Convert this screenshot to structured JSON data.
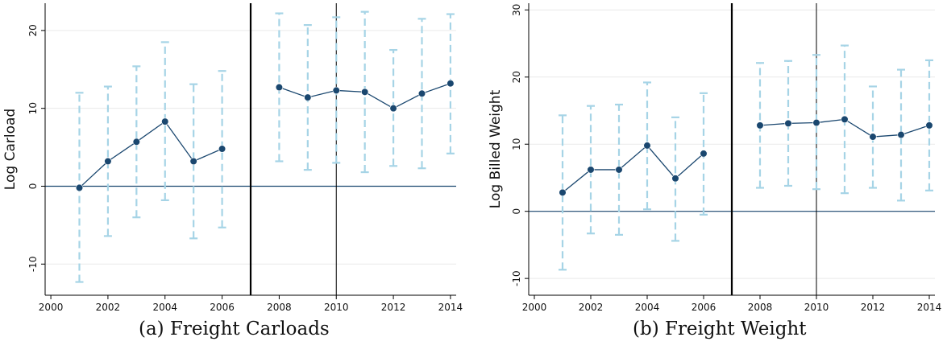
{
  "chart_data": [
    {
      "type": "line",
      "caption": "(a) Freight Carloads",
      "ylabel": "Log Carload",
      "xlabel": "",
      "xlim": [
        1999.8,
        2014.2
      ],
      "ylim": [
        -14,
        23.5
      ],
      "xticks": [
        2000,
        2002,
        2004,
        2006,
        2008,
        2010,
        2012,
        2014
      ],
      "yticks": [
        -10,
        0,
        10,
        20
      ],
      "hline": 0,
      "vlines": [
        {
          "x": 2007,
          "style": "thick"
        },
        {
          "x": 2010,
          "style": "thin"
        }
      ],
      "grid": true,
      "series": [
        {
          "segment": "pre",
          "points": [
            {
              "x": 2001,
              "y": -0.2,
              "lo": -12.3,
              "hi": 12.0
            },
            {
              "x": 2002,
              "y": 3.2,
              "lo": -6.4,
              "hi": 12.8
            },
            {
              "x": 2003,
              "y": 5.7,
              "lo": -4.0,
              "hi": 15.4
            },
            {
              "x": 2004,
              "y": 8.3,
              "lo": -1.8,
              "hi": 18.5
            },
            {
              "x": 2005,
              "y": 3.2,
              "lo": -6.7,
              "hi": 13.1
            },
            {
              "x": 2006,
              "y": 4.8,
              "lo": -5.3,
              "hi": 14.8
            }
          ]
        },
        {
          "segment": "post",
          "points": [
            {
              "x": 2008,
              "y": 12.7,
              "lo": 3.2,
              "hi": 22.2
            },
            {
              "x": 2009,
              "y": 11.4,
              "lo": 2.1,
              "hi": 20.7
            },
            {
              "x": 2010,
              "y": 12.3,
              "lo": 3.0,
              "hi": 21.7
            },
            {
              "x": 2011,
              "y": 12.1,
              "lo": 1.8,
              "hi": 22.4
            },
            {
              "x": 2012,
              "y": 10.0,
              "lo": 2.6,
              "hi": 17.5
            },
            {
              "x": 2013,
              "y": 11.9,
              "lo": 2.3,
              "hi": 21.5
            },
            {
              "x": 2014,
              "y": 13.2,
              "lo": 4.2,
              "hi": 22.1
            }
          ]
        }
      ]
    },
    {
      "type": "line",
      "caption": "(b) Freight Weight",
      "ylabel": "Log Billed Weight",
      "xlabel": "",
      "xlim": [
        1999.8,
        2014.2
      ],
      "ylim": [
        -12.5,
        31
      ],
      "xticks": [
        2000,
        2002,
        2004,
        2006,
        2008,
        2010,
        2012,
        2014
      ],
      "yticks": [
        -10,
        0,
        10,
        20,
        30
      ],
      "hline": 0,
      "vlines": [
        {
          "x": 2007,
          "style": "thick"
        },
        {
          "x": 2010,
          "style": "thin"
        }
      ],
      "grid": true,
      "series": [
        {
          "segment": "pre",
          "points": [
            {
              "x": 2001,
              "y": 2.8,
              "lo": -8.7,
              "hi": 14.3
            },
            {
              "x": 2002,
              "y": 6.2,
              "lo": -3.3,
              "hi": 15.7
            },
            {
              "x": 2003,
              "y": 6.2,
              "lo": -3.5,
              "hi": 15.9
            },
            {
              "x": 2004,
              "y": 9.8,
              "lo": 0.3,
              "hi": 19.2
            },
            {
              "x": 2005,
              "y": 4.9,
              "lo": -4.4,
              "hi": 14.0
            },
            {
              "x": 2006,
              "y": 8.6,
              "lo": -0.5,
              "hi": 17.6
            }
          ]
        },
        {
          "segment": "post",
          "points": [
            {
              "x": 2008,
              "y": 12.8,
              "lo": 3.5,
              "hi": 22.1
            },
            {
              "x": 2009,
              "y": 13.1,
              "lo": 3.8,
              "hi": 22.4
            },
            {
              "x": 2010,
              "y": 13.2,
              "lo": 3.3,
              "hi": 23.3
            },
            {
              "x": 2011,
              "y": 13.7,
              "lo": 2.7,
              "hi": 24.7
            },
            {
              "x": 2012,
              "y": 11.1,
              "lo": 3.5,
              "hi": 18.6
            },
            {
              "x": 2013,
              "y": 11.4,
              "lo": 1.6,
              "hi": 21.1
            },
            {
              "x": 2014,
              "y": 12.8,
              "lo": 3.1,
              "hi": 22.5
            }
          ]
        }
      ]
    }
  ],
  "colors": {
    "line": "#1a476f",
    "marker": "#1a476f",
    "ci": "#a6d4e6",
    "zero": "#1a476f",
    "grid": "#eaeaea",
    "axis": "#000000"
  }
}
